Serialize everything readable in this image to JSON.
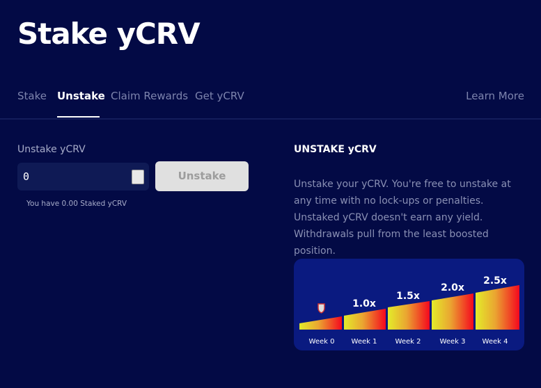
{
  "header": {
    "title": "Stake yCRV"
  },
  "tabs": [
    "Stake",
    "Unstake",
    "Claim Rewards",
    "Get yCRV"
  ],
  "learn_more": "Learn More",
  "form": {
    "label": "Unstake yCRV",
    "input": "0",
    "button": "Unstake",
    "balance": "You have 0.00 Staked yCRV"
  },
  "info": {
    "title": "UNSTAKE yCRV",
    "text": "Unstake your yCRV. You're free to unstake at any time with no lock-ups or penalties. Unstaked yCRV doesn't earn any yield. Withdrawals pull from the least boosted position."
  },
  "boost": {
    "multipliers": [
      "1.0x",
      "1.5x",
      "2.0x",
      "2.5x"
    ],
    "weeks": [
      "Week 0",
      "Week 1",
      "Week 2",
      "Week 3",
      "Week 4"
    ]
  }
}
